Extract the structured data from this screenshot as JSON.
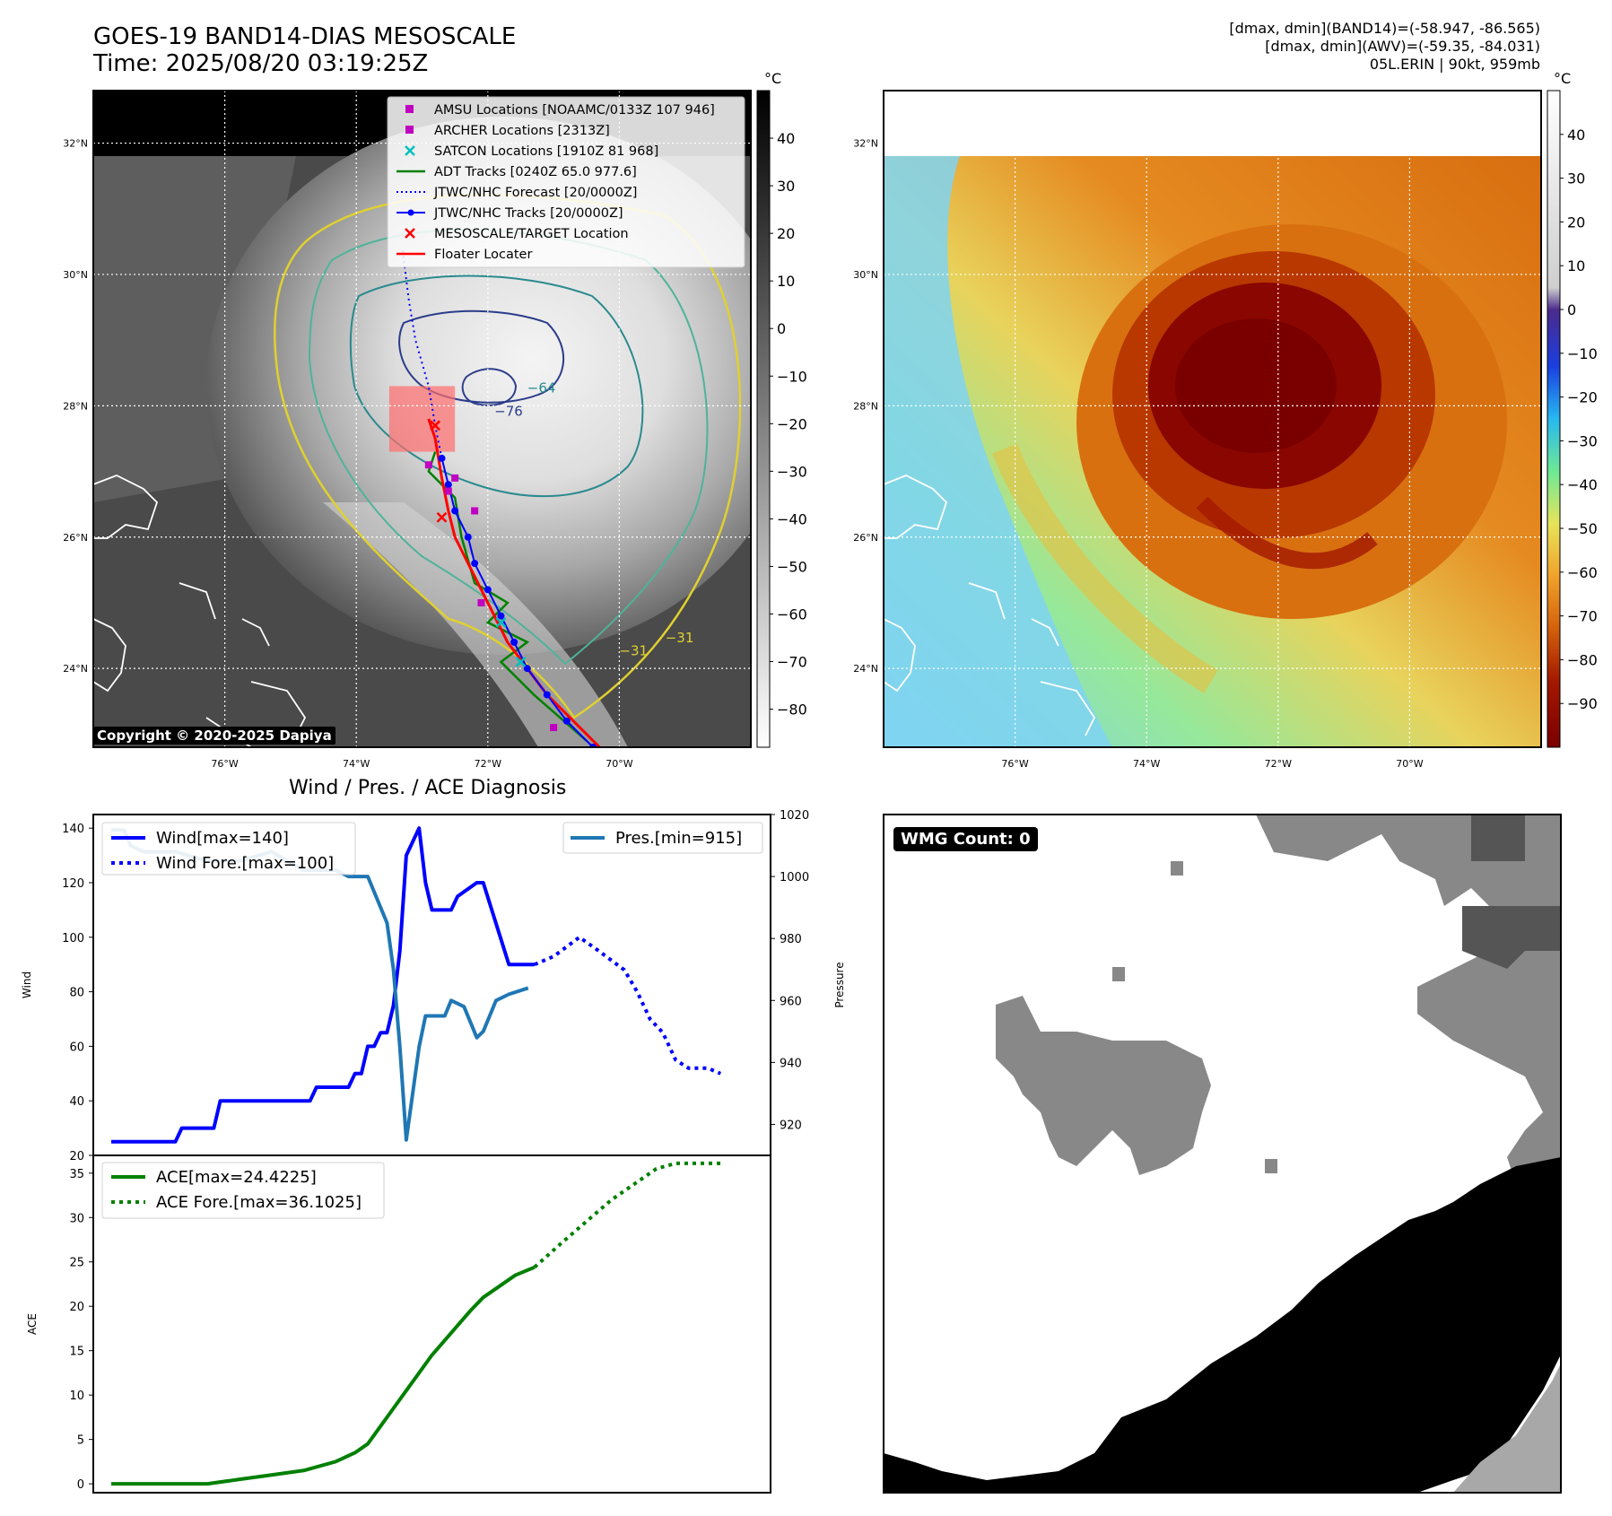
{
  "header": {
    "title": "GOES-19 BAND14-DIAS MESOSCALE",
    "time": "Time: 2025/08/20 03:19:25Z",
    "stats_band14": "[dmax, dmin](BAND14)=(-58.947, -86.565)",
    "stats_awv": "[dmax, dmin](AWV)=(-59.35, -84.031)",
    "storm": "05L.ERIN | 90kt, 959mb"
  },
  "map_axes": {
    "lat_labels": [
      "32°N",
      "30°N",
      "28°N",
      "26°N",
      "24°N"
    ],
    "lat_values": [
      32,
      30,
      28,
      26,
      24
    ],
    "lon_labels": [
      "76°W",
      "74°W",
      "72°W",
      "70°W"
    ],
    "lon_values": [
      -76,
      -74,
      -72,
      -70
    ],
    "lon_range": [
      -78,
      -68
    ],
    "lat_range": [
      22.8,
      32.8
    ]
  },
  "left_map": {
    "colorbar_unit": "°C",
    "colorbar_ticks": [
      "40",
      "30",
      "20",
      "10",
      "0",
      "−10",
      "−20",
      "−30",
      "−40",
      "−50",
      "−60",
      "−70",
      "−80"
    ],
    "colorbar_values": [
      40,
      30,
      20,
      10,
      0,
      -10,
      -20,
      -30,
      -40,
      -50,
      -60,
      -70,
      -80
    ],
    "colorbar_range": [
      -88,
      50
    ],
    "contour_labels": [
      "−64",
      "−76",
      "−31",
      "−31"
    ],
    "legend": [
      {
        "label": "AMSU Locations [NOAAMC/0133Z 107 946]",
        "marker": "square",
        "color": "#c000c0"
      },
      {
        "label": "ARCHER Locations [2313Z]",
        "marker": "square",
        "color": "#c000c0"
      },
      {
        "label": "SATCON Locations [1910Z 81 968]",
        "marker": "x",
        "color": "#00c0c0"
      },
      {
        "label": "ADT Tracks [0240Z 65.0 977.6]",
        "marker": "line",
        "color": "#008000"
      },
      {
        "label": "JTWC/NHC Forecast [20/0000Z]",
        "marker": "dotted",
        "color": "#0000ff"
      },
      {
        "label": "JTWC/NHC Tracks [20/0000Z]",
        "marker": "line-dot",
        "color": "#0000ff"
      },
      {
        "label": "MESOSCALE/TARGET Location",
        "marker": "x",
        "color": "#ff0000"
      },
      {
        "label": "Floater Locater",
        "marker": "line",
        "color": "#ff0000"
      }
    ],
    "copyright": "Copyright © 2020-2025 Dapiya",
    "tracks": {
      "jtwc": [
        [
          -70.4,
          22.8
        ],
        [
          -70.8,
          23.2
        ],
        [
          -71.1,
          23.6
        ],
        [
          -71.4,
          24.0
        ],
        [
          -71.6,
          24.4
        ],
        [
          -71.8,
          24.8
        ],
        [
          -72.0,
          25.2
        ],
        [
          -72.2,
          25.6
        ],
        [
          -72.3,
          26.0
        ],
        [
          -72.5,
          26.4
        ],
        [
          -72.6,
          26.8
        ],
        [
          -72.7,
          27.2
        ]
      ],
      "forecast": [
        [
          -72.7,
          27.2
        ],
        [
          -72.8,
          27.7
        ],
        [
          -72.9,
          28.3
        ],
        [
          -73.1,
          29.0
        ],
        [
          -73.2,
          29.6
        ],
        [
          -73.3,
          30.4
        ]
      ],
      "floater": [
        [
          -70.3,
          22.8
        ],
        [
          -70.7,
          23.2
        ],
        [
          -71.1,
          23.6
        ],
        [
          -71.4,
          24.0
        ],
        [
          -71.7,
          24.4
        ],
        [
          -71.9,
          24.8
        ],
        [
          -72.1,
          25.2
        ],
        [
          -72.3,
          25.6
        ],
        [
          -72.5,
          26.0
        ],
        [
          -72.6,
          26.4
        ],
        [
          -72.7,
          26.9
        ],
        [
          -72.8,
          27.5
        ],
        [
          -72.9,
          27.8
        ]
      ],
      "adt": [
        [
          -70.5,
          22.9
        ],
        [
          -71.3,
          23.6
        ],
        [
          -71.8,
          24.1
        ],
        [
          -71.4,
          24.4
        ],
        [
          -72.0,
          24.7
        ],
        [
          -71.7,
          25.0
        ],
        [
          -72.2,
          25.3
        ],
        [
          -72.4,
          26.0
        ],
        [
          -72.5,
          26.6
        ],
        [
          -72.9,
          27.0
        ],
        [
          -72.8,
          27.3
        ]
      ],
      "amsu": [
        [
          -71.0,
          23.1
        ],
        [
          -72.1,
          25.0
        ],
        [
          -72.2,
          26.4
        ],
        [
          -72.5,
          26.9
        ]
      ],
      "archer": [
        [
          -72.9,
          27.1
        ],
        [
          -72.6,
          26.7
        ]
      ],
      "satcon": [
        [
          -71.5,
          24.1
        ],
        [
          -71.8,
          24.7
        ]
      ],
      "target": [
        [
          -72.7,
          26.3
        ],
        [
          -72.8,
          27.7
        ]
      ]
    },
    "target_box": {
      "lon": [
        -73.5,
        -72.5
      ],
      "lat": [
        27.3,
        28.3
      ]
    }
  },
  "right_map": {
    "colorbar_unit": "°C",
    "colorbar_ticks": [
      "40",
      "30",
      "20",
      "10",
      "0",
      "−10",
      "−20",
      "−30",
      "−40",
      "−50",
      "−60",
      "−70",
      "−80",
      "−90"
    ],
    "colorbar_values": [
      40,
      30,
      20,
      10,
      0,
      -10,
      -20,
      -30,
      -40,
      -50,
      -60,
      -70,
      -80,
      -90
    ],
    "colorbar_range": [
      -100,
      50
    ]
  },
  "diag_title": "Wind / Pres. / ACE Diagnosis",
  "chart_data": [
    {
      "type": "line",
      "title": "Wind / Pres. / ACE Diagnosis",
      "ylabel": "Wind",
      "y2label": "Pressure",
      "ylim": [
        20,
        145
      ],
      "y2lim": [
        910,
        1020
      ],
      "xlim": [
        0,
        100
      ],
      "yticks": [
        20,
        40,
        60,
        80,
        100,
        120,
        140
      ],
      "y2ticks": [
        920,
        940,
        960,
        980,
        1000,
        1020
      ],
      "series": [
        {
          "name": "Wind[max=140]",
          "axis": "left",
          "style": "solid",
          "color": "#0000ff",
          "x": [
            0,
            10,
            11,
            16,
            17,
            21,
            22,
            31,
            32,
            37,
            38,
            39,
            40,
            41,
            42,
            43,
            44,
            45,
            46,
            48,
            49,
            50,
            53,
            54,
            57,
            58,
            60,
            62,
            66
          ],
          "values": [
            25,
            25,
            30,
            30,
            40,
            40,
            40,
            40,
            45,
            45,
            50,
            50,
            60,
            60,
            65,
            65,
            75,
            95,
            130,
            140,
            120,
            110,
            110,
            115,
            120,
            120,
            105,
            90,
            90
          ]
        },
        {
          "name": "Wind Fore.[max=100]",
          "axis": "left",
          "style": "dotted",
          "color": "#0000ff",
          "x": [
            66,
            69,
            73,
            76,
            80,
            82,
            84,
            86,
            88,
            90,
            93,
            95
          ],
          "values": [
            90,
            93,
            100,
            95,
            88,
            80,
            70,
            65,
            55,
            52,
            52,
            50
          ]
        },
        {
          "name": "Pres.[min=915]",
          "axis": "right",
          "style": "solid",
          "color": "#1f77b4",
          "x": [
            0,
            2,
            3,
            5,
            10,
            15,
            20,
            25,
            30,
            35,
            37,
            39,
            40,
            41,
            43,
            44,
            45,
            46,
            48,
            49,
            52,
            53,
            55,
            57,
            58,
            60,
            62,
            65
          ],
          "values": [
            1015,
            1015,
            1010,
            1008,
            1008,
            1005,
            1005,
            1008,
            1002,
            1002,
            1000,
            1000,
            1000,
            995,
            985,
            970,
            945,
            915,
            945,
            955,
            955,
            960,
            958,
            948,
            950,
            960,
            962,
            964
          ]
        }
      ]
    },
    {
      "type": "line",
      "ylabel": "ACE",
      "ylim": [
        -1,
        37
      ],
      "xlim": [
        0,
        100
      ],
      "yticks": [
        0,
        5,
        10,
        15,
        20,
        25,
        30,
        35
      ],
      "series": [
        {
          "name": "ACE[max=24.4225]",
          "style": "solid",
          "color": "#008000",
          "x": [
            0,
            5,
            10,
            15,
            20,
            25,
            30,
            35,
            38,
            40,
            41,
            42,
            44,
            46,
            48,
            50,
            53,
            56,
            58,
            60,
            63,
            66
          ],
          "values": [
            0,
            0,
            0,
            0,
            0.5,
            1.0,
            1.5,
            2.5,
            3.5,
            4.5,
            5.5,
            6.5,
            8.5,
            10.5,
            12.5,
            14.5,
            17,
            19.5,
            21,
            22,
            23.5,
            24.4
          ]
        },
        {
          "name": "ACE Fore.[max=36.1025]",
          "style": "dotted",
          "color": "#008000",
          "x": [
            66,
            70,
            74,
            78,
            82,
            85,
            88,
            92,
            95
          ],
          "values": [
            24.4,
            27,
            29.5,
            32,
            34,
            35.5,
            36.1,
            36.1,
            36.1
          ]
        }
      ]
    }
  ],
  "wmg": {
    "label": "WMG Count: 0"
  }
}
